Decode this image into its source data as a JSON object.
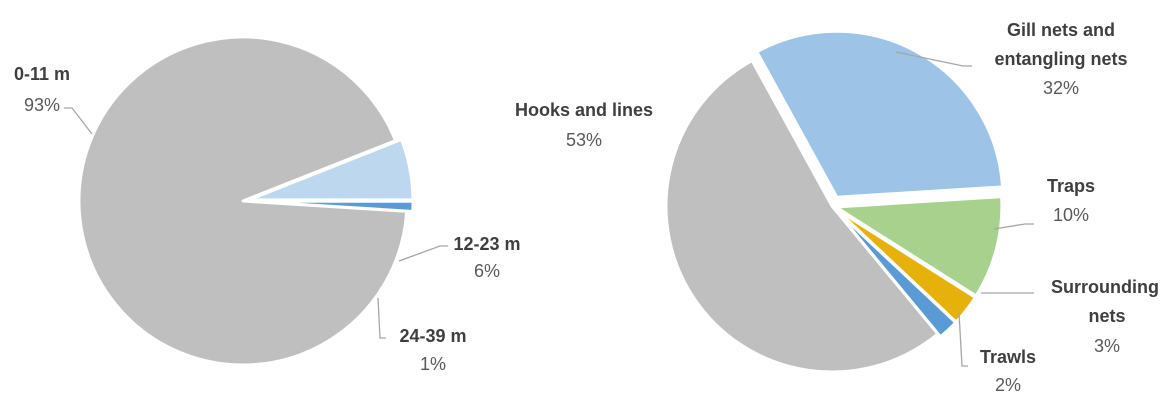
{
  "chart_data": [
    {
      "type": "pie",
      "title": "",
      "slices": [
        {
          "label": "0-11 m",
          "value": 93,
          "value_label": "93%",
          "color": "#BFBFBF"
        },
        {
          "label": "12-23 m",
          "value": 6,
          "value_label": "6%",
          "color": "#BDD7EE"
        },
        {
          "label": "24-39 m",
          "value": 1,
          "value_label": "1%",
          "color": "#5B9BD5"
        }
      ],
      "legend": "none",
      "data_labels": "outside-with-leader-lines"
    },
    {
      "type": "pie",
      "title": "",
      "slices": [
        {
          "label": "Gill nets and entangling nets",
          "label_lines": [
            "Gill nets and",
            "entangling nets"
          ],
          "value": 32,
          "value_label": "32%",
          "color": "#9DC3E6"
        },
        {
          "label": "Traps",
          "label_lines": [
            "Traps"
          ],
          "value": 10,
          "value_label": "10%",
          "color": "#A9D18E"
        },
        {
          "label": "Surrounding nets",
          "label_lines": [
            "Surrounding",
            "nets"
          ],
          "value": 3,
          "value_label": "3%",
          "color": "#E6B10A"
        },
        {
          "label": "Trawls",
          "label_lines": [
            "Trawls"
          ],
          "value": 2,
          "value_label": "2%",
          "color": "#5B9BD5"
        },
        {
          "label": "Hooks and lines",
          "label_lines": [
            "Hooks and lines"
          ],
          "value": 53,
          "value_label": "53%",
          "color": "#BFBFBF"
        }
      ],
      "legend": "none",
      "data_labels": "outside-with-leader-lines"
    }
  ]
}
